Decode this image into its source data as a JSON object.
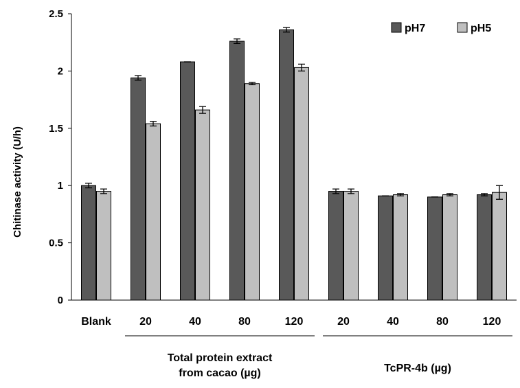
{
  "chart_data": {
    "type": "bar",
    "ylabel": "Chitinase activity (U/h)",
    "ylim": [
      0,
      2.5
    ],
    "yticks": [
      0,
      0.5,
      1,
      1.5,
      2,
      2.5
    ],
    "ytick_labels": [
      "0",
      "0.5",
      "1",
      "1.5",
      "2",
      "2.5"
    ],
    "grid": false,
    "legend_position": "top-right",
    "categories": [
      "Blank",
      "20",
      "40",
      "80",
      "120",
      "20",
      "40",
      "80",
      "120"
    ],
    "groups": [
      {
        "label_lines": [
          "Total protein extract",
          "from cacao (µg)"
        ],
        "categories": [
          "20",
          "40",
          "80",
          "120"
        ]
      },
      {
        "label_lines": [
          "TcPR-4b (µg)"
        ],
        "categories": [
          "20",
          "40",
          "80",
          "120"
        ]
      }
    ],
    "series": [
      {
        "name": "pH7",
        "color": "#595959",
        "values": [
          1.0,
          1.94,
          2.08,
          2.26,
          2.36,
          0.95,
          0.91,
          0.9,
          0.92
        ],
        "errors": [
          0.02,
          0.02,
          0.0,
          0.02,
          0.02,
          0.02,
          0.0,
          0.0,
          0.01
        ]
      },
      {
        "name": "pH5",
        "color": "#bfbfbf",
        "values": [
          0.95,
          1.54,
          1.66,
          1.89,
          2.03,
          0.95,
          0.92,
          0.92,
          0.94
        ],
        "errors": [
          0.02,
          0.02,
          0.03,
          0.01,
          0.03,
          0.02,
          0.01,
          0.01,
          0.06
        ]
      }
    ]
  }
}
